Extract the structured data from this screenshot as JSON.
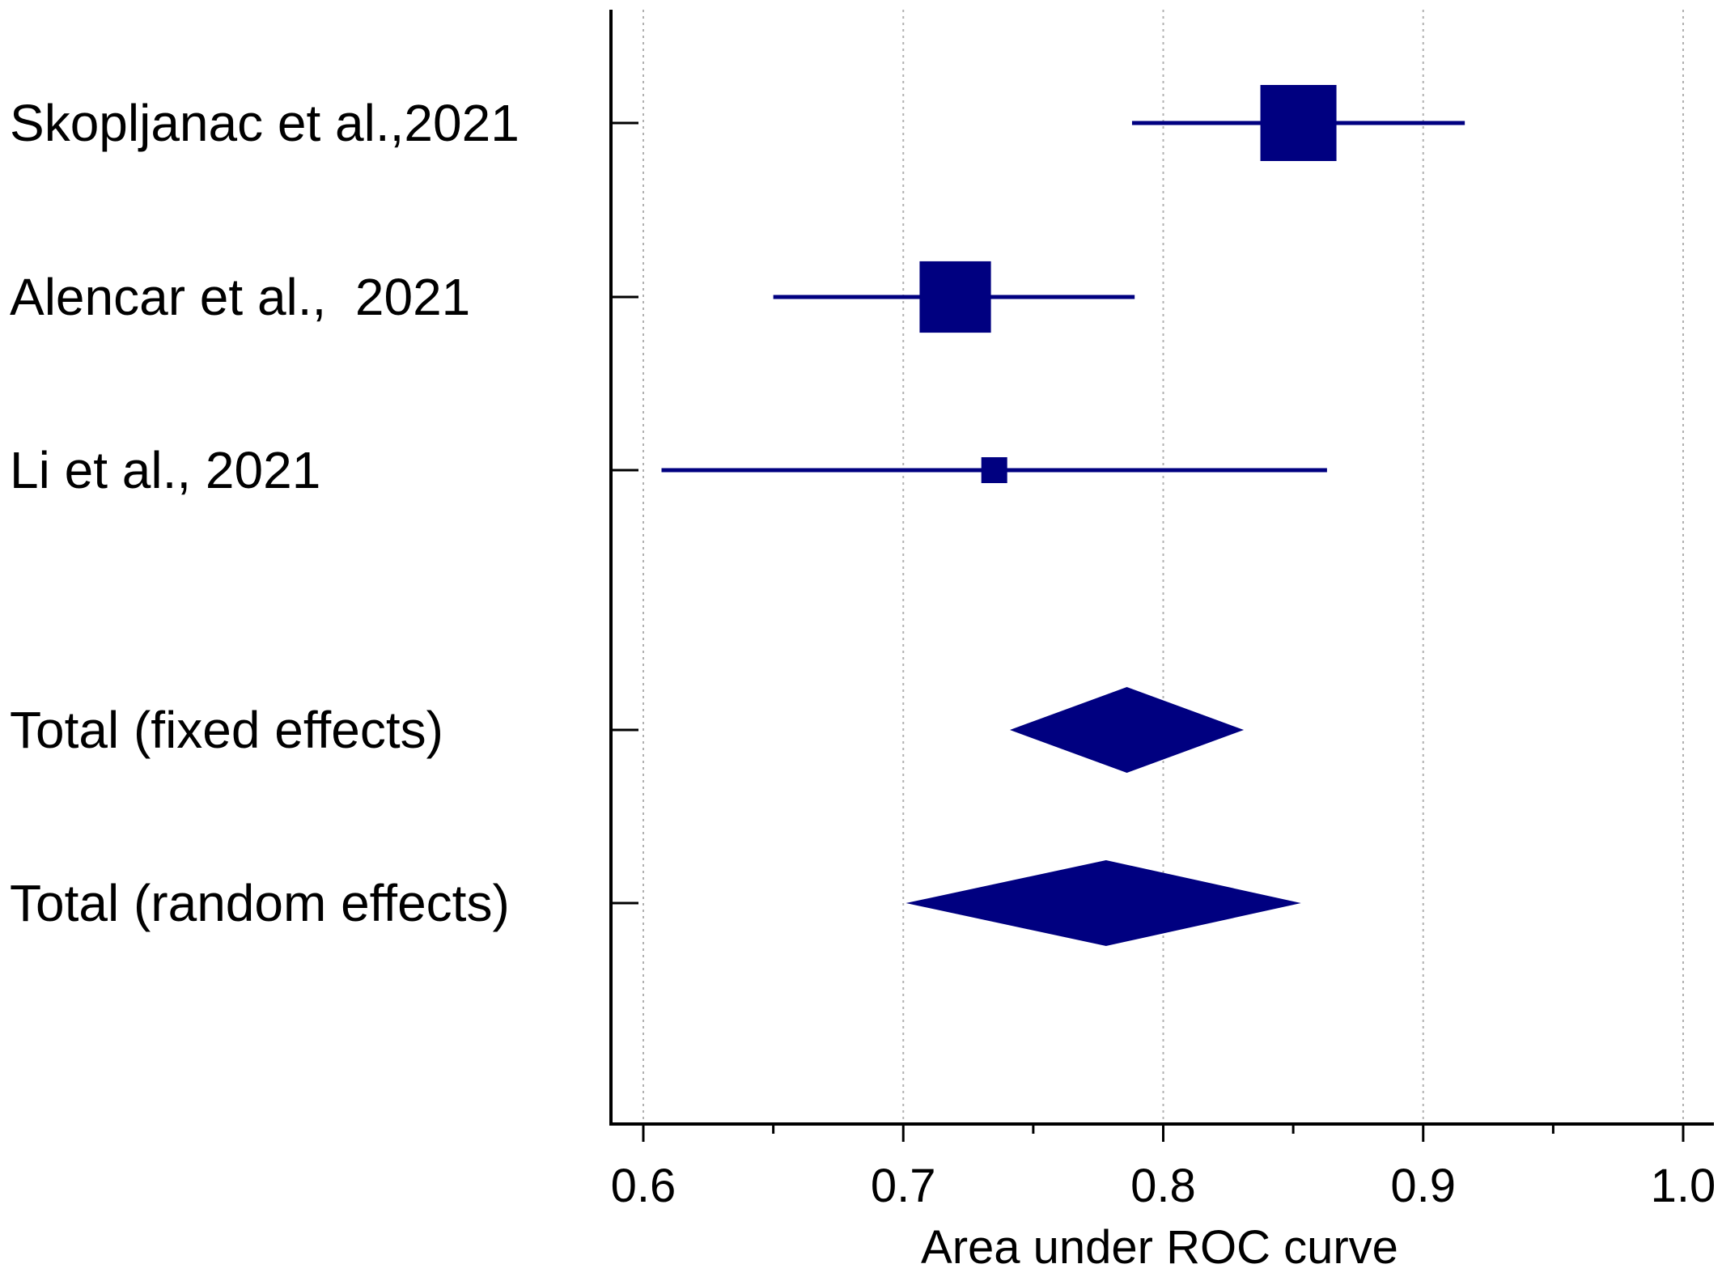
{
  "chart_data": {
    "type": "forest",
    "title": "",
    "xlabel": "Area under ROC curve",
    "xlim": [
      0.6,
      1.0
    ],
    "x_ticks": [
      "0.6",
      "0.7",
      "0.8",
      "0.9",
      "1.0"
    ],
    "minor_ticks": [
      0.65,
      0.75,
      0.85,
      0.95
    ],
    "gridlines": "vertical-dotted",
    "studies": [
      {
        "label": "Skopljanac et al.,2021",
        "estimate": 0.852,
        "ci_low": 0.788,
        "ci_high": 0.916,
        "weight": 1.0
      },
      {
        "label": "Alencar et al.,  2021",
        "estimate": 0.72,
        "ci_low": 0.65,
        "ci_high": 0.789,
        "weight": 0.88
      },
      {
        "label": "Li et al., 2021",
        "estimate": 0.735,
        "ci_low": 0.607,
        "ci_high": 0.863,
        "weight": 0.3
      }
    ],
    "pooled": [
      {
        "label": "Total (fixed effects)",
        "estimate": 0.786,
        "ci_low": 0.741,
        "ci_high": 0.831
      },
      {
        "label": "Total (random effects)",
        "estimate": 0.778,
        "ci_low": 0.701,
        "ci_high": 0.853
      }
    ],
    "colors": {
      "marker": "#000080",
      "axis": "#000000",
      "grid": "#b0b0b0"
    }
  }
}
